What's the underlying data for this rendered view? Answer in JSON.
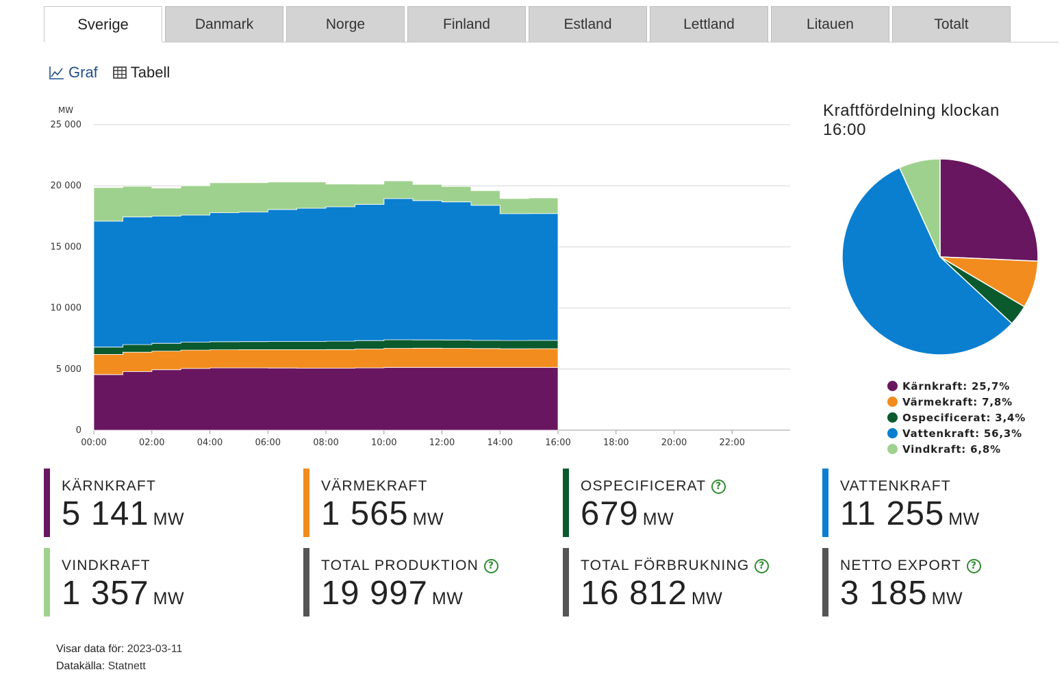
{
  "tabs": [
    {
      "label": "Sverige",
      "active": true
    },
    {
      "label": "Danmark",
      "active": false
    },
    {
      "label": "Norge",
      "active": false
    },
    {
      "label": "Finland",
      "active": false
    },
    {
      "label": "Estland",
      "active": false
    },
    {
      "label": "Lettland",
      "active": false
    },
    {
      "label": "Litauen",
      "active": false
    },
    {
      "label": "Totalt",
      "active": false
    }
  ],
  "views": {
    "graph_label": "Graf",
    "table_label": "Tabell",
    "active": "Graf"
  },
  "colors": {
    "karnkraft": "#691660",
    "varmekraft": "#f28c1e",
    "ospecificerat": "#0a5a2e",
    "vattenkraft": "#0a7fd0",
    "vindkraft": "#9fd18e",
    "total_bar": "#555555",
    "help": "#2e8b2e"
  },
  "chart_data": [
    {
      "type": "area",
      "stacked": true,
      "ylabel": "MW",
      "ylim": [
        0,
        25000
      ],
      "yticks": [
        0,
        5000,
        10000,
        15000,
        20000,
        25000
      ],
      "ytick_labels": [
        "0",
        "5 000",
        "10 000",
        "15 000",
        "20 000",
        "25 000"
      ],
      "xlim": [
        "00:00",
        "24:00"
      ],
      "xtick_labels": [
        "00:00",
        "02:00",
        "04:00",
        "06:00",
        "08:00",
        "10:00",
        "12:00",
        "14:00",
        "16:00",
        "18:00",
        "20:00",
        "22:00"
      ],
      "grid": true,
      "x": [
        "00:00",
        "01:00",
        "02:00",
        "03:00",
        "04:00",
        "05:00",
        "06:00",
        "07:00",
        "08:00",
        "09:00",
        "10:00",
        "11:00",
        "12:00",
        "13:00",
        "14:00",
        "15:00",
        "16:00"
      ],
      "series": [
        {
          "name": "Kärnkraft",
          "color": "#691660",
          "values": [
            4550,
            4800,
            4950,
            5050,
            5100,
            5100,
            5090,
            5080,
            5080,
            5100,
            5140,
            5140,
            5140,
            5140,
            5140,
            5140,
            5141
          ]
        },
        {
          "name": "Värmekraft",
          "color": "#f28c1e",
          "values": [
            1650,
            1580,
            1520,
            1500,
            1480,
            1490,
            1500,
            1510,
            1520,
            1540,
            1560,
            1570,
            1560,
            1540,
            1520,
            1530,
            1565
          ]
        },
        {
          "name": "Ospecificerat",
          "color": "#0a5a2e",
          "values": [
            600,
            620,
            640,
            650,
            660,
            660,
            670,
            670,
            680,
            690,
            700,
            680,
            680,
            670,
            680,
            680,
            679
          ]
        },
        {
          "name": "Vattenkraft",
          "color": "#0a7fd0",
          "values": [
            10300,
            10450,
            10400,
            10400,
            10550,
            10600,
            10800,
            10900,
            11000,
            11150,
            11550,
            11400,
            11300,
            11050,
            10380,
            10380,
            11255
          ]
        },
        {
          "name": "Vindkraft",
          "color": "#9fd18e",
          "values": [
            2750,
            2500,
            2300,
            2400,
            2450,
            2400,
            2250,
            2150,
            1860,
            1650,
            1450,
            1320,
            1250,
            1200,
            1230,
            1270,
            1357
          ]
        }
      ]
    },
    {
      "type": "pie",
      "title": "Kraftfördelning klockan 16:00",
      "slices": [
        {
          "name": "Kärnkraft",
          "value": 25.7,
          "color": "#691660",
          "legend": "Kärnkraft: 25,7%"
        },
        {
          "name": "Värmekraft",
          "value": 7.8,
          "color": "#f28c1e",
          "legend": "Värmekraft: 7,8%"
        },
        {
          "name": "Ospecificerat",
          "value": 3.4,
          "color": "#0a5a2e",
          "legend": "Ospecificerat: 3,4%"
        },
        {
          "name": "Vattenkraft",
          "value": 56.3,
          "color": "#0a7fd0",
          "legend": "Vattenkraft: 56,3%"
        },
        {
          "name": "Vindkraft",
          "value": 6.8,
          "color": "#9fd18e",
          "legend": "Vindkraft: 6,8%"
        }
      ]
    }
  ],
  "pie_title_line1": "Kraftfördelning klockan",
  "pie_title_line2": "16:00",
  "stats": [
    {
      "key": "karnkraft",
      "label": "KÄRNKRAFT",
      "value": "5 141",
      "unit": "MW",
      "help": false,
      "color": "#691660"
    },
    {
      "key": "varmekraft",
      "label": "VÄRMEKRAFT",
      "value": "1 565",
      "unit": "MW",
      "help": false,
      "color": "#f28c1e"
    },
    {
      "key": "ospecificerat",
      "label": "OSPECIFICERAT",
      "value": "679",
      "unit": "MW",
      "help": true,
      "color": "#0a5a2e"
    },
    {
      "key": "vattenkraft",
      "label": "VATTENKRAFT",
      "value": "11 255",
      "unit": "MW",
      "help": false,
      "color": "#0a7fd0"
    },
    {
      "key": "vindkraft",
      "label": "VINDKRAFT",
      "value": "1 357",
      "unit": "MW",
      "help": false,
      "color": "#9fd18e"
    },
    {
      "key": "total-produktion",
      "label": "TOTAL PRODUKTION",
      "value": "19 997",
      "unit": "MW",
      "help": true,
      "color": "#555555"
    },
    {
      "key": "total-forbrukning",
      "label": "TOTAL FÖRBRUKNING",
      "value": "16 812",
      "unit": "MW",
      "help": true,
      "color": "#555555"
    },
    {
      "key": "netto-export",
      "label": "NETTO EXPORT",
      "value": "3 185",
      "unit": "MW",
      "help": true,
      "color": "#555555"
    }
  ],
  "help_glyph": "?",
  "footer": {
    "date_label": "Visar data för:",
    "date_value": "2023-03-11",
    "source_label": "Datakälla:",
    "source_value": "Statnett"
  }
}
